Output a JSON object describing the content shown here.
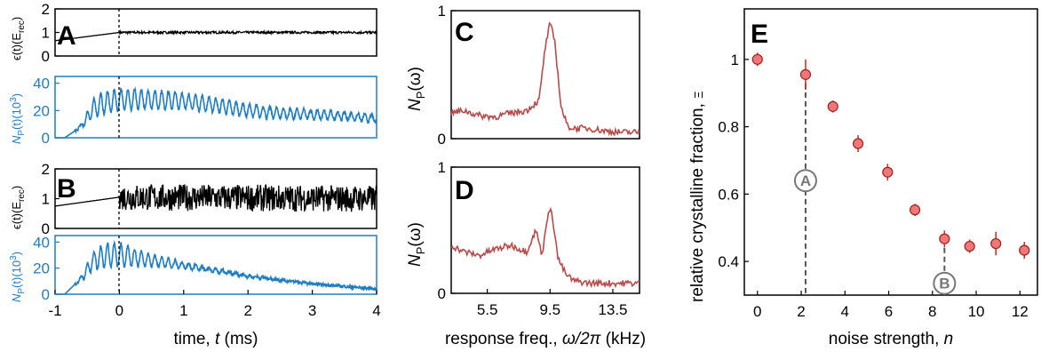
{
  "colors": {
    "blue": "#1f7ec2",
    "red": "#b84a4a",
    "black": "#000000",
    "marker_fill": "#ef7777",
    "dash": "#555555",
    "gray": "#777777"
  },
  "labels": {
    "A": "A",
    "B": "B",
    "C": "C",
    "D": "D",
    "E": "E",
    "eps_ylabel_A": "ϵ(t)(E",
    "eps_ylabel_B": "ϵ(t)(E",
    "rec_sub": "rec",
    "close_paren": ")",
    "np_ylabel_A_main": "N",
    "np_ylabel_A_sub": "P",
    "np_ylabel_A_rest": "(t)(10",
    "np_ylabel_A_sup": "3",
    "np_ylabel_A_end": ")",
    "np_ylabel_B_main": "N",
    "np_ylabel_B_sub": "P",
    "np_ylabel_B_rest": "(t)(10",
    "np_ylabel_B_sup": "3",
    "np_ylabel_B_end": ")",
    "time_xlabel": "time, ",
    "time_t": "t",
    "time_unit": " (ms)",
    "npw_main_C": "N",
    "npw_sub_C": "P",
    "npw_rest_C": "(ω)",
    "npw_main_D": "N",
    "npw_sub_D": "P",
    "npw_rest_D": "(ω)",
    "freq_xlabel": "response freq., ",
    "freq_omega": "ω/2π",
    "freq_unit": " (kHz)",
    "E_ylabel": "relative crystalline fraction, ",
    "E_ylabel_sym": "Ξ",
    "E_xlabel": "noise strength, ",
    "E_xlabel_n": "n",
    "markerA": "A",
    "markerB": "B"
  },
  "chart_data": [
    {
      "panel": "A",
      "type": "line",
      "ylabel": "ϵ(t)(E_rec)",
      "xlim": [
        -1,
        4
      ],
      "ylim": [
        0,
        2
      ],
      "yticks": [
        "0",
        "1",
        "2"
      ],
      "series": [
        {
          "x": [
            -1,
            0,
            4
          ],
          "y": [
            0.65,
            1.0,
            1.0
          ],
          "noise": "low"
        }
      ]
    },
    {
      "panel": "A",
      "type": "line",
      "ylabel": "N_P(t)(10^3)",
      "xlim": [
        -1,
        4
      ],
      "ylim": [
        0,
        45
      ],
      "yticks": [
        "0",
        "20",
        "40"
      ],
      "series": [
        {
          "x": [
            -1,
            -0.85,
            -0.6,
            -0.4,
            -0.2,
            0,
            0.5,
            1,
            1.5,
            2,
            2.5,
            3,
            3.5,
            4
          ],
          "y": [
            0,
            0,
            8,
            22,
            26,
            28,
            28,
            27,
            24,
            20,
            18,
            17,
            16,
            14
          ],
          "osc": "strong"
        }
      ]
    },
    {
      "panel": "B",
      "type": "line",
      "ylabel": "ϵ(t)(E_rec)",
      "xlim": [
        -1,
        4
      ],
      "ylim": [
        0,
        2
      ],
      "yticks": [
        "0",
        "1",
        "2"
      ],
      "series": [
        {
          "x": [
            -1,
            0,
            4
          ],
          "y": [
            0.75,
            1.05,
            1.0
          ],
          "noise": "high"
        }
      ]
    },
    {
      "panel": "B",
      "type": "line",
      "ylabel": "N_P(t)(10^3)",
      "xlim": [
        -1,
        4
      ],
      "ylim": [
        0,
        45
      ],
      "yticks": [
        "0",
        "20",
        "40"
      ],
      "xticks": [
        "-1",
        "0",
        "1",
        "2",
        "3",
        "4"
      ],
      "xlabel": "time, t (ms)",
      "series": [
        {
          "x": [
            -1,
            -0.85,
            -0.6,
            -0.4,
            -0.2,
            0,
            0.5,
            1,
            1.5,
            2,
            2.5,
            3,
            3.5,
            4
          ],
          "y": [
            0,
            0,
            12,
            26,
            30,
            30,
            26,
            22,
            18,
            14,
            11,
            8,
            6,
            4
          ],
          "osc": "decaying"
        }
      ]
    },
    {
      "panel": "C",
      "type": "line",
      "ylabel": "N_P(ω)",
      "xlim": [
        3.2,
        15.2
      ],
      "ylim": [
        0,
        1
      ],
      "yticks": [
        "0",
        "1"
      ],
      "series": [
        {
          "x": [
            3.2,
            4,
            5,
            6,
            7,
            8,
            8.8,
            9.2,
            9.5,
            9.8,
            10.2,
            10.6,
            11,
            12,
            13,
            14,
            15.2
          ],
          "y": [
            0.2,
            0.22,
            0.18,
            0.17,
            0.2,
            0.22,
            0.3,
            0.72,
            0.9,
            0.76,
            0.25,
            0.1,
            0.08,
            0.08,
            0.06,
            0.05,
            0.05
          ]
        }
      ]
    },
    {
      "panel": "D",
      "type": "line",
      "ylabel": "N_P(ω)",
      "xlim": [
        3.2,
        15.2
      ],
      "ylim": [
        0,
        1
      ],
      "yticks": [
        "0",
        "1"
      ],
      "xticks": [
        "5.5",
        "9.5",
        "13.5"
      ],
      "xlabel": "response freq., ω/2π (kHz)",
      "series": [
        {
          "x": [
            3.2,
            4,
            5,
            6,
            7,
            8,
            8.6,
            9.0,
            9.3,
            9.6,
            10.0,
            10.5,
            11,
            12,
            13,
            14,
            15.2
          ],
          "y": [
            0.38,
            0.33,
            0.3,
            0.35,
            0.38,
            0.33,
            0.5,
            0.3,
            0.6,
            0.66,
            0.28,
            0.15,
            0.1,
            0.08,
            0.08,
            0.08,
            0.08
          ]
        }
      ]
    },
    {
      "panel": "E",
      "type": "scatter",
      "xlabel": "noise strength, n",
      "ylabel": "relative crystalline fraction, Ξ",
      "xlim": [
        -0.6,
        12.8
      ],
      "ylim": [
        0.3,
        1.15
      ],
      "xticks": [
        "0",
        "2",
        "4",
        "6",
        "8",
        "10",
        "12"
      ],
      "yticks": [
        "0.4",
        "0.6",
        "0.8",
        "1"
      ],
      "points": [
        {
          "x": 0,
          "y": 1.0,
          "err": 0.02
        },
        {
          "x": 2.2,
          "y": 0.955,
          "err": 0.045
        },
        {
          "x": 3.45,
          "y": 0.86,
          "err": 0.018
        },
        {
          "x": 4.6,
          "y": 0.75,
          "err": 0.025
        },
        {
          "x": 5.95,
          "y": 0.665,
          "err": 0.025
        },
        {
          "x": 7.2,
          "y": 0.553,
          "err": 0.018
        },
        {
          "x": 8.55,
          "y": 0.467,
          "err": 0.025
        },
        {
          "x": 9.7,
          "y": 0.445,
          "err": 0.02
        },
        {
          "x": 10.9,
          "y": 0.453,
          "err": 0.035
        },
        {
          "x": 12.2,
          "y": 0.433,
          "err": 0.025
        }
      ],
      "markers": [
        {
          "label": "A",
          "x": 2.2,
          "y": 0.64
        },
        {
          "label": "B",
          "x": 8.55,
          "y": 0.335
        }
      ]
    }
  ]
}
